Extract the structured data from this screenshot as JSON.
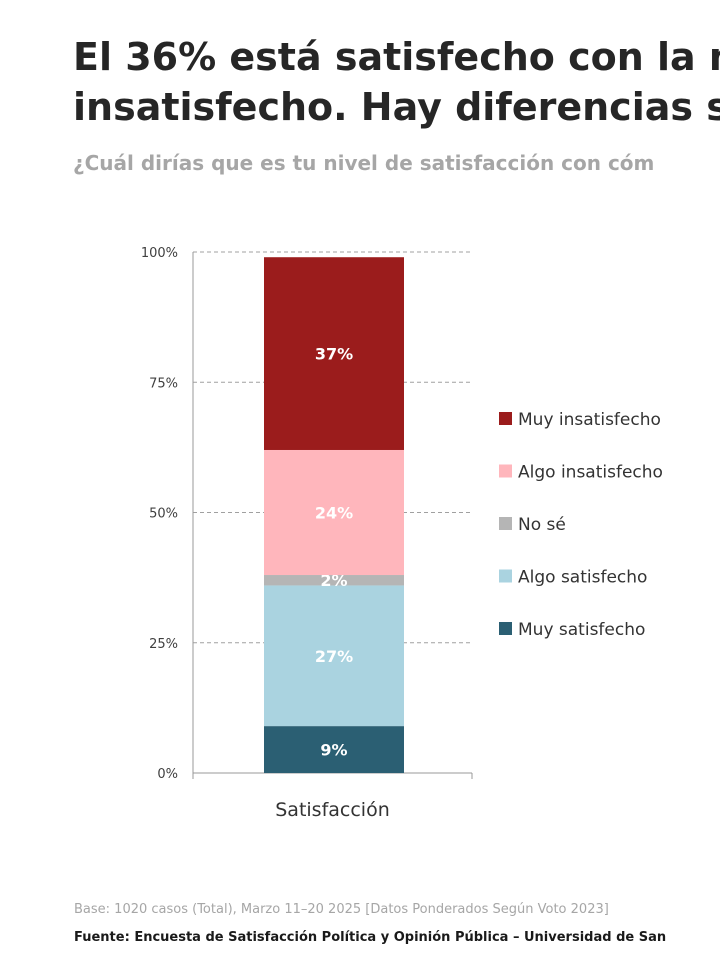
{
  "title_line1": "El 36% está satisfecho con la m",
  "title_line2": "insatisfecho. Hay diferencias s",
  "subtitle": "¿Cuál dirías que es tu nivel de satisfacción con cóm",
  "base_note": "Base: 1020 casos (Total), Marzo 11–20 2025 [Datos Ponderados Según Voto 2023]",
  "source_note": "Fuente: Encuesta de Satisfacción Política y Opinión Pública – Universidad de San",
  "colors": {
    "muy_insatisfecho": "#9b1c1c",
    "algo_insatisfecho": "#ffb6bc",
    "no_se": "#b5b5b5",
    "algo_satisfecho": "#aad3e0",
    "muy_satisfecho": "#2b5f73"
  },
  "chart_data": {
    "type": "bar",
    "stacked": true,
    "categories": [
      "Satisfacción"
    ],
    "series": [
      {
        "name": "Muy satisfecho",
        "values": [
          9
        ],
        "label": "9%",
        "color": "#2b5f73"
      },
      {
        "name": "Algo satisfecho",
        "values": [
          27
        ],
        "label": "27%",
        "color": "#aad3e0"
      },
      {
        "name": "No sé",
        "values": [
          2
        ],
        "label": "2%",
        "color": "#b5b5b5"
      },
      {
        "name": "Algo insatisfecho",
        "values": [
          24
        ],
        "label": "24%",
        "color": "#ffb6bc"
      },
      {
        "name": "Muy insatisfecho",
        "values": [
          37
        ],
        "label": "37%",
        "color": "#9b1c1c"
      }
    ],
    "legend_order": [
      "Muy insatisfecho",
      "Algo insatisfecho",
      "No sé",
      "Algo satisfecho",
      "Muy satisfecho"
    ],
    "yticks": [
      "0%",
      "25%",
      "50%",
      "75%",
      "100%"
    ],
    "ylim": [
      0,
      100
    ],
    "grid": true,
    "legend_position": "right"
  }
}
